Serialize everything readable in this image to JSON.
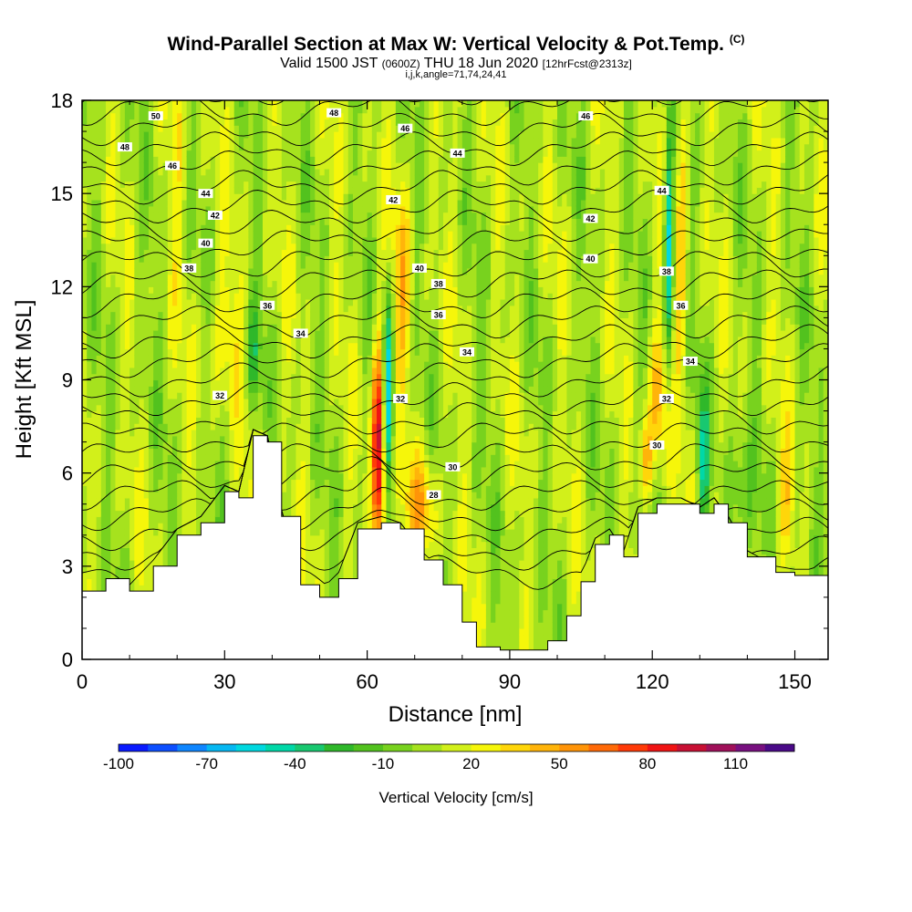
{
  "header": {
    "title": "Wind-Parallel Section at Max W: Vertical Velocity & Pot.Temp.",
    "title_mark": "(C)",
    "valid_main": "Valid 1500 JST",
    "valid_utc": "(0600Z)",
    "valid_date": "THU 18 Jun 2020",
    "forecast_info": "[12hrFcst@2313z]",
    "indices": "i,j,k,angle=71,74,24,41"
  },
  "chart_data": {
    "type": "heatmap",
    "xlabel": "Distance [nm]",
    "ylabel": "Height [Kft MSL]",
    "xlim": [
      0,
      157
    ],
    "ylim": [
      0,
      18
    ],
    "x_ticks": [
      "0",
      "30",
      "60",
      "90",
      "120",
      "150"
    ],
    "y_ticks": [
      "0",
      "3",
      "6",
      "9",
      "12",
      "15",
      "18"
    ],
    "x_tick_values": [
      0,
      30,
      60,
      90,
      120,
      150
    ],
    "y_tick_values": [
      0,
      3,
      6,
      9,
      12,
      15,
      18
    ],
    "terrain_kft": [
      [
        0,
        2.2
      ],
      [
        5,
        2.6
      ],
      [
        10,
        2.2
      ],
      [
        15,
        3
      ],
      [
        20,
        4
      ],
      [
        25,
        4.4
      ],
      [
        30,
        5.4
      ],
      [
        33,
        5.2
      ],
      [
        36,
        7.2
      ],
      [
        39,
        7
      ],
      [
        42,
        4.6
      ],
      [
        46,
        2.4
      ],
      [
        50,
        2
      ],
      [
        54,
        2.6
      ],
      [
        58,
        4.2
      ],
      [
        63,
        4.4
      ],
      [
        67,
        4.2
      ],
      [
        72,
        3.2
      ],
      [
        76,
        2.4
      ],
      [
        80,
        1.2
      ],
      [
        83,
        0.4
      ],
      [
        88,
        0.3
      ],
      [
        94,
        0.3
      ],
      [
        98,
        0.6
      ],
      [
        102,
        1.4
      ],
      [
        105,
        2.5
      ],
      [
        108,
        3.7
      ],
      [
        111,
        4
      ],
      [
        114,
        3.3
      ],
      [
        117,
        4.7
      ],
      [
        121,
        5
      ],
      [
        126,
        5
      ],
      [
        130,
        4.7
      ],
      [
        133,
        5
      ],
      [
        136,
        4.4
      ],
      [
        140,
        3.3
      ],
      [
        146,
        2.8
      ],
      [
        150,
        2.7
      ],
      [
        157,
        2.7
      ]
    ],
    "colorbar": {
      "label": "Vertical Velocity [cm/s]",
      "tick_labels": [
        "-100",
        "-70",
        "-40",
        "-10",
        "20",
        "50",
        "80",
        "110"
      ],
      "tick_values": [
        -100,
        -70,
        -40,
        -10,
        20,
        50,
        80,
        110
      ],
      "min": -100,
      "max": 130,
      "colors": [
        "#0a1aff",
        "#0d4fff",
        "#0f86ff",
        "#06b8f2",
        "#00d8e0",
        "#00d8a8",
        "#18c870",
        "#2fb82a",
        "#52c21e",
        "#78d21e",
        "#a6e21e",
        "#d2f01a",
        "#f6f60a",
        "#ffd60a",
        "#ffb40a",
        "#ff9408",
        "#ff6a08",
        "#ff3a08",
        "#f01414",
        "#c81034",
        "#a0105a",
        "#781080",
        "#4a0a88"
      ]
    },
    "theta_contour_labels": [
      {
        "text": "50",
        "x": 15.5,
        "y": 17.5
      },
      {
        "text": "48",
        "x": 9,
        "y": 16.5
      },
      {
        "text": "46",
        "x": 19,
        "y": 15.9
      },
      {
        "text": "44",
        "x": 26,
        "y": 15
      },
      {
        "text": "42",
        "x": 28,
        "y": 14.3
      },
      {
        "text": "40",
        "x": 26,
        "y": 13.4
      },
      {
        "text": "38",
        "x": 22.5,
        "y": 12.6
      },
      {
        "text": "36",
        "x": 39,
        "y": 11.4
      },
      {
        "text": "34",
        "x": 46,
        "y": 10.5
      },
      {
        "text": "32",
        "x": 29,
        "y": 8.5
      },
      {
        "text": "48",
        "x": 53,
        "y": 17.6
      },
      {
        "text": "46",
        "x": 68,
        "y": 17.1
      },
      {
        "text": "44",
        "x": 79,
        "y": 16.3
      },
      {
        "text": "42",
        "x": 65.5,
        "y": 14.8
      },
      {
        "text": "40",
        "x": 71,
        "y": 12.6
      },
      {
        "text": "38",
        "x": 75,
        "y": 12.1
      },
      {
        "text": "36",
        "x": 75,
        "y": 11.1
      },
      {
        "text": "34",
        "x": 81,
        "y": 9.9
      },
      {
        "text": "32",
        "x": 67,
        "y": 8.4
      },
      {
        "text": "30",
        "x": 78,
        "y": 6.2
      },
      {
        "text": "28",
        "x": 74,
        "y": 5.3
      },
      {
        "text": "46",
        "x": 106,
        "y": 17.5
      },
      {
        "text": "44",
        "x": 122,
        "y": 15.1
      },
      {
        "text": "42",
        "x": 107,
        "y": 14.2
      },
      {
        "text": "40",
        "x": 107,
        "y": 12.9
      },
      {
        "text": "38",
        "x": 123,
        "y": 12.5
      },
      {
        "text": "36",
        "x": 126,
        "y": 11.4
      },
      {
        "text": "34",
        "x": 128,
        "y": 9.6
      },
      {
        "text": "32",
        "x": 123,
        "y": 8.4
      },
      {
        "text": "30",
        "x": 121,
        "y": 6.9
      }
    ]
  }
}
